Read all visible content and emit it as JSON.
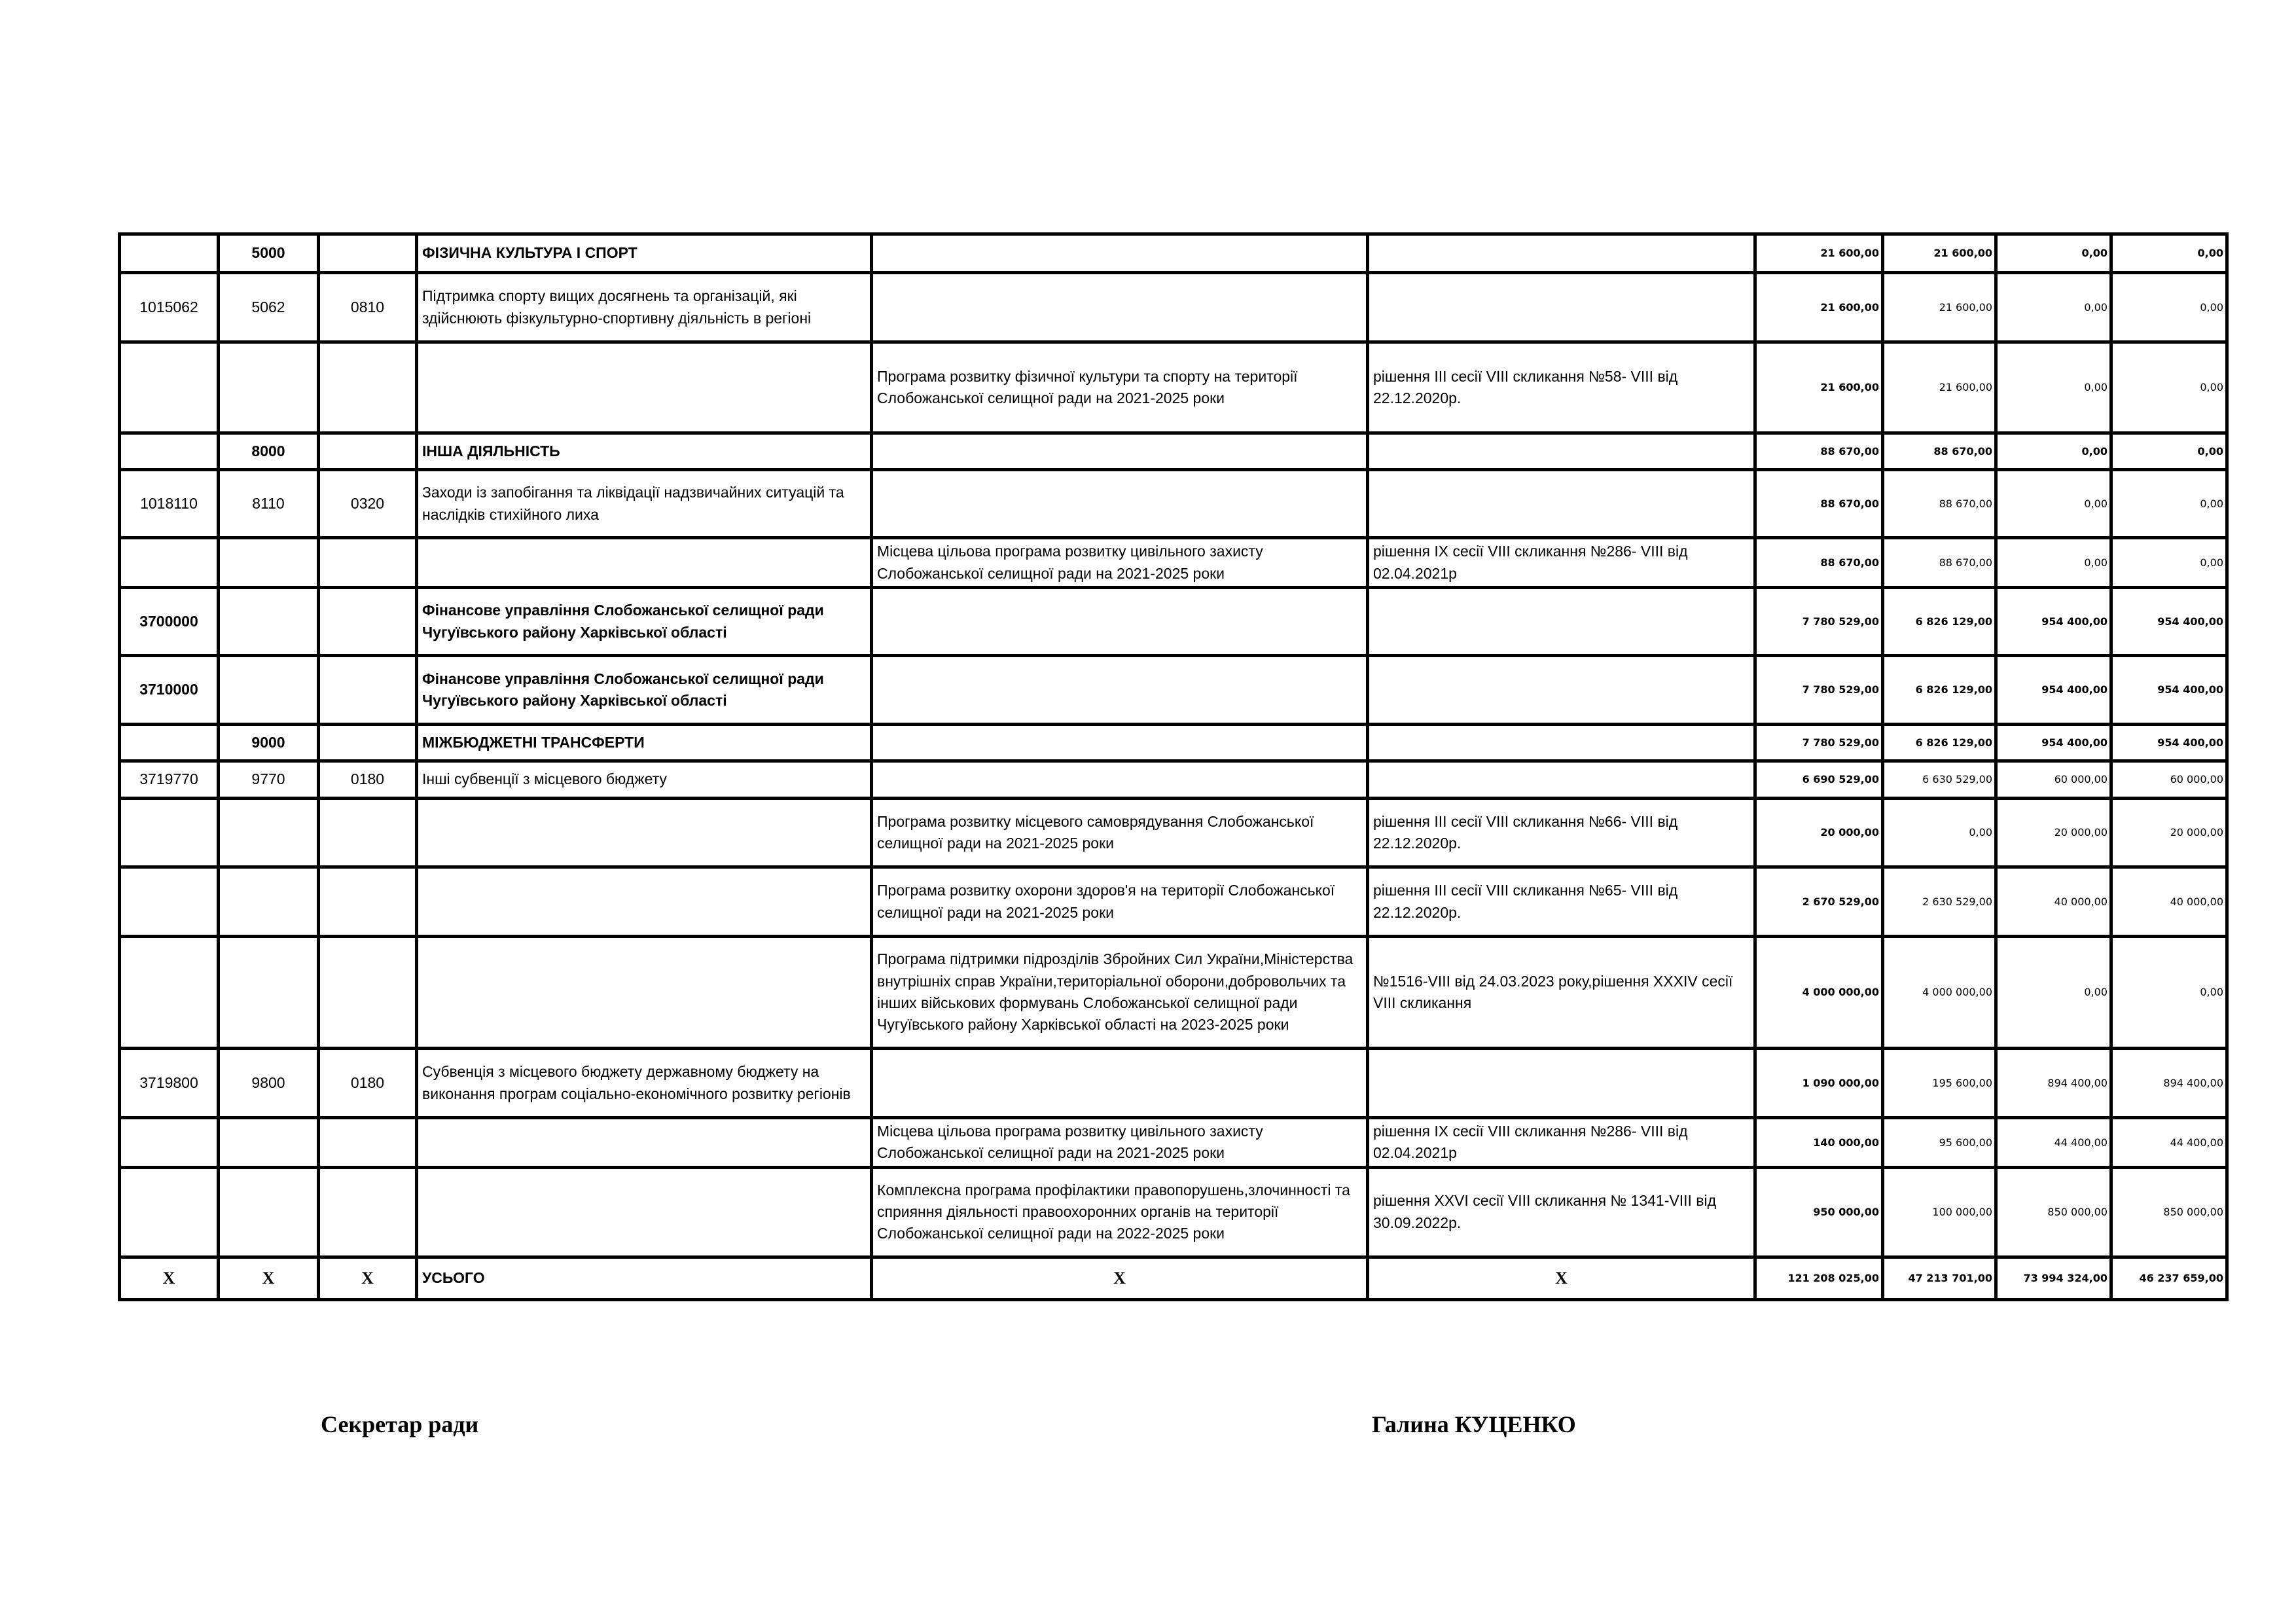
{
  "table": {
    "rows": [
      {
        "bold": true,
        "cells": [
          "",
          "5000",
          "",
          "ФІЗИЧНА КУЛЬТУРА І СПОРТ",
          "",
          "",
          "21 600,00",
          "21 600,00",
          "0,00",
          "0,00"
        ]
      },
      {
        "bold": false,
        "cells": [
          "1015062",
          "5062",
          "0810",
          "Підтримка спорту вищих досягнень та організацій, які здійснюють фізкультурно-спортивну діяльність в регіоні",
          "",
          "",
          "21 600,00",
          "21 600,00",
          "0,00",
          "0,00"
        ]
      },
      {
        "bold": false,
        "cells": [
          "",
          "",
          "",
          "",
          "Програма розвитку фізичної культури та спорту на території Слобожанської селищної ради на 2021-2025 роки",
          "рішення ІІІ сесії VIII скликання №58- VIII від 22.12.2020р.",
          "21 600,00",
          "21 600,00",
          "0,00",
          "0,00"
        ]
      },
      {
        "bold": true,
        "cells": [
          "",
          "8000",
          "",
          "ІНША ДІЯЛЬНІСТЬ",
          "",
          "",
          "88 670,00",
          "88 670,00",
          "0,00",
          "0,00"
        ]
      },
      {
        "bold": false,
        "cells": [
          "1018110",
          "8110",
          "0320",
          "Заходи із запобігання та ліквідації надзвичайних ситуацій та наслідків стихійного лиха",
          "",
          "",
          "88 670,00",
          "88 670,00",
          "0,00",
          "0,00"
        ]
      },
      {
        "bold": false,
        "cells": [
          "",
          "",
          "",
          "",
          "Місцева цільова програма розвитку цивільного захисту Слобожанської селищної ради на 2021-2025 роки",
          "рішення ІХ сесії VIII скликання №286- VIII від 02.04.2021р",
          "88 670,00",
          "88 670,00",
          "0,00",
          "0,00"
        ]
      },
      {
        "bold": true,
        "cells": [
          "3700000",
          "",
          "",
          "Фінансове управління Слобожанської селищної ради Чугуївського району Харківської області",
          "",
          "",
          "7 780 529,00",
          "6 826 129,00",
          "954 400,00",
          "954 400,00"
        ]
      },
      {
        "bold": true,
        "cells": [
          "3710000",
          "",
          "",
          "Фінансове управління Слобожанської селищної ради Чугуївського району Харківської області",
          "",
          "",
          "7 780 529,00",
          "6 826 129,00",
          "954 400,00",
          "954 400,00"
        ]
      },
      {
        "bold": true,
        "cells": [
          "",
          "9000",
          "",
          "МІЖБЮДЖЕТНІ ТРАНСФЕРТИ",
          "",
          "",
          "7 780 529,00",
          "6 826 129,00",
          "954 400,00",
          "954 400,00"
        ]
      },
      {
        "bold": false,
        "cells": [
          "3719770",
          "9770",
          "0180",
          "Інші субвенції з місцевого бюджету",
          "",
          "",
          "6 690 529,00",
          "6 630 529,00",
          "60 000,00",
          "60 000,00"
        ]
      },
      {
        "bold": false,
        "cells": [
          "",
          "",
          "",
          "",
          "Програма розвитку місцевого самоврядування Слобожанської селищної ради на 2021-2025 роки",
          "рішення ІІІ сесії VIII скликання №66- VIII від 22.12.2020р.",
          "20 000,00",
          "0,00",
          "20 000,00",
          "20 000,00"
        ]
      },
      {
        "bold": false,
        "cells": [
          "",
          "",
          "",
          "",
          "Програма розвитку охорони здоров'я на території Слобожанської селищної ради на 2021-2025 роки",
          "рішення ІІІ сесії VIII скликання №65- VIII від 22.12.2020р.",
          "2 670 529,00",
          "2 630 529,00",
          "40 000,00",
          "40 000,00"
        ]
      },
      {
        "bold": false,
        "cells": [
          "",
          "",
          "",
          "",
          "Програма підтримки підрозділів Збройних Сил України,Міністерства внутрішніх справ України,територіальної оборони,добровольчих та інших військових формувань Слобожанської селищної ради Чугуївського району Харківської області на 2023-2025 роки",
          "№1516-VIII від 24.03.2023 року,рішення XXXIV сесії VIII скликання",
          "4 000 000,00",
          "4 000 000,00",
          "0,00",
          "0,00"
        ]
      },
      {
        "bold": false,
        "cells": [
          "3719800",
          "9800",
          "0180",
          "Субвенція з місцевого бюджету державному бюджету на виконання програм соціально-економічного розвитку регіонів",
          "",
          "",
          "1 090 000,00",
          "195 600,00",
          "894 400,00",
          "894 400,00"
        ]
      },
      {
        "bold": false,
        "cells": [
          "",
          "",
          "",
          "",
          "Місцева цільова програма розвитку цивільного захисту Слобожанської селищної ради на 2021-2025 роки",
          "рішення ІХ сесії VIII скликання №286- VIII від 02.04.2021р",
          "140 000,00",
          "95 600,00",
          "44 400,00",
          "44 400,00"
        ]
      },
      {
        "bold": false,
        "cells": [
          "",
          "",
          "",
          "",
          "Комплексна програма профілактики правопорушень,злочинності та сприяння діяльності правоохоронних органів на території  Слобожанської селищної ради на 2022-2025 роки",
          "рішення XXVI сесії VIII скликання № 1341-VIII від 30.09.2022р.",
          "950 000,00",
          "100 000,00",
          "850 000,00",
          "850 000,00"
        ]
      },
      {
        "bold": true,
        "total": true,
        "cells": [
          "Х",
          "Х",
          "Х",
          "УСЬОГО",
          "Х",
          "Х",
          "121 208 025,00",
          "47 213 701,00",
          "73 994 324,00",
          "46 237 659,00"
        ]
      }
    ]
  },
  "footer": {
    "secretary_title": "Секретар ради",
    "secretary_name": "Галина КУЦЕНКО"
  }
}
